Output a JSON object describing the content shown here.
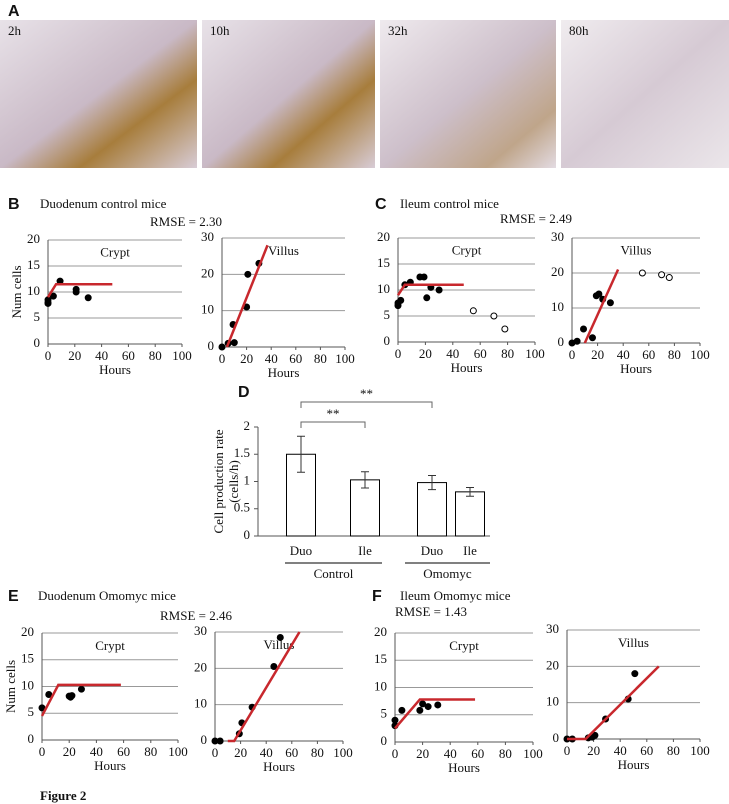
{
  "figure_label": "Figure 2",
  "image_labels": [
    "2h",
    "10h",
    "32h",
    "80h"
  ],
  "panels": [
    {
      "letter": "A"
    },
    {
      "letter": "B",
      "title": "Duodenum control mice",
      "annotation": "RMSE =  2.30"
    },
    {
      "letter": "C",
      "title": "Ileum control mice",
      "annotation": "RMSE = 2.49"
    },
    {
      "letter": "D"
    },
    {
      "letter": "E",
      "title": "Duodenum Omomyc mice",
      "annotation": "RMSE = 2.46"
    },
    {
      "letter": "F",
      "title": "Ileum Omomyc mice",
      "annotation": "RMSE = 1.43"
    }
  ],
  "chart_data": [
    {
      "type": "scatter",
      "label": "Crypt",
      "y_label": "Num cells",
      "x_label": "Hours",
      "xlim": [
        0,
        100
      ],
      "xticks": [
        0,
        20,
        40,
        60,
        80,
        100
      ],
      "ylim": [
        0,
        20
      ],
      "yticks": [
        0,
        5,
        10,
        15,
        20
      ],
      "grid": true,
      "series": [
        {
          "style": "filled",
          "color": "#000000",
          "x": [
            0,
            0,
            0,
            4,
            9,
            21,
            21,
            30
          ],
          "values": [
            8.5,
            7.8,
            8,
            9.2,
            12.1,
            10.5,
            10,
            8.9
          ]
        },
        {
          "style": "line",
          "color": "#c8282d",
          "x": [
            0,
            6,
            48
          ],
          "values": [
            9,
            11.5,
            11.5
          ]
        }
      ]
    },
    {
      "type": "scatter",
      "label": "Villus",
      "x_label": "Hours",
      "xlim": [
        0,
        100
      ],
      "xticks": [
        0,
        20,
        40,
        60,
        80,
        100
      ],
      "ylim": [
        0,
        30
      ],
      "yticks": [
        0,
        10,
        20,
        30
      ],
      "grid": true,
      "series": [
        {
          "style": "filled",
          "color": "#000000",
          "x": [
            0,
            5,
            9,
            10,
            20,
            21,
            30
          ],
          "values": [
            0,
            1,
            6.2,
            1.2,
            11,
            20,
            23
          ]
        },
        {
          "style": "line",
          "color": "#c8282d",
          "x": [
            4,
            37
          ],
          "values": [
            0,
            28
          ]
        }
      ]
    },
    {
      "type": "scatter",
      "label": "Crypt",
      "x_label": "Hours",
      "xlim": [
        0,
        100
      ],
      "xticks": [
        0,
        20,
        40,
        60,
        80,
        100
      ],
      "ylim": [
        0,
        20
      ],
      "yticks": [
        0,
        5,
        10,
        15,
        20
      ],
      "grid": true,
      "series": [
        {
          "style": "filled",
          "color": "#000000",
          "x": [
            0,
            0,
            2,
            5,
            9,
            16,
            19,
            21,
            24,
            30
          ],
          "values": [
            7,
            7.5,
            8,
            11,
            11.5,
            12.5,
            12.5,
            8.5,
            10.5,
            10
          ]
        },
        {
          "style": "open",
          "color": "#000000",
          "x": [
            55,
            70,
            78
          ],
          "values": [
            6,
            5,
            2.5
          ]
        },
        {
          "style": "line",
          "color": "#c8282d",
          "x": [
            0,
            5,
            48
          ],
          "values": [
            9,
            11,
            11
          ]
        }
      ]
    },
    {
      "type": "scatter",
      "label": "Villus",
      "x_label": "Hours",
      "xlim": [
        0,
        100
      ],
      "xticks": [
        0,
        20,
        40,
        60,
        80,
        100
      ],
      "ylim": [
        0,
        30
      ],
      "yticks": [
        0,
        10,
        20,
        30
      ],
      "grid": true,
      "series": [
        {
          "style": "filled",
          "color": "#000000",
          "x": [
            0,
            4,
            9,
            16,
            19,
            21,
            24,
            30
          ],
          "values": [
            0,
            0.5,
            4,
            1.5,
            13.5,
            14,
            12.5,
            11.5
          ]
        },
        {
          "style": "open",
          "color": "#000000",
          "x": [
            55,
            70,
            76
          ],
          "values": [
            20,
            19.5,
            18.7
          ]
        },
        {
          "style": "line",
          "color": "#c8282d",
          "x": [
            10,
            36
          ],
          "values": [
            0,
            21
          ]
        }
      ]
    },
    {
      "type": "bar",
      "y_label": [
        "Cell production rate",
        "(cells/h)"
      ],
      "categories": [
        "Duo",
        "Ile",
        "Duo",
        "Ile"
      ],
      "groups": [
        "Control",
        "Omomyc"
      ],
      "values": [
        1.5,
        1.03,
        0.98,
        0.81
      ],
      "errors": [
        0.33,
        0.15,
        0.13,
        0.08
      ],
      "annotations": [
        "**",
        "**"
      ],
      "ylim": [
        0,
        2
      ],
      "yticks": [
        0,
        0.5,
        1,
        1.5,
        2
      ],
      "grid": false,
      "color": "#ffffff"
    },
    {
      "type": "scatter",
      "label": "Crypt",
      "y_label": "Num cells",
      "x_label": "Hours",
      "xlim": [
        0,
        100
      ],
      "xticks": [
        0,
        20,
        40,
        60,
        80,
        100
      ],
      "ylim": [
        0,
        20
      ],
      "yticks": [
        0,
        5,
        10,
        15,
        20
      ],
      "grid": true,
      "series": [
        {
          "style": "filled",
          "color": "#000000",
          "x": [
            0,
            5,
            20,
            21,
            22,
            29
          ],
          "values": [
            6,
            8.5,
            8.2,
            8,
            8.3,
            9.5
          ]
        },
        {
          "style": "line",
          "color": "#c8282d",
          "x": [
            0,
            12,
            58
          ],
          "values": [
            4.5,
            10.3,
            10.3
          ]
        }
      ]
    },
    {
      "type": "scatter",
      "label": "Villus",
      "x_label": "Hours",
      "xlim": [
        0,
        100
      ],
      "xticks": [
        0,
        20,
        40,
        60,
        80,
        100
      ],
      "ylim": [
        0,
        30
      ],
      "yticks": [
        0,
        10,
        20,
        30
      ],
      "grid": true,
      "series": [
        {
          "style": "filled",
          "color": "#000000",
          "x": [
            0,
            4,
            19,
            21,
            29,
            46,
            51
          ],
          "values": [
            0,
            0,
            2,
            5,
            9.3,
            20.5,
            28.5
          ]
        },
        {
          "style": "line",
          "color": "#c8282d",
          "x": [
            10,
            15,
            66
          ],
          "values": [
            0,
            0,
            30
          ]
        }
      ]
    },
    {
      "type": "scatter",
      "label": "Crypt",
      "x_label": "Hours",
      "xlim": [
        0,
        100
      ],
      "xticks": [
        0,
        20,
        40,
        60,
        80,
        100
      ],
      "ylim": [
        0,
        20
      ],
      "yticks": [
        0,
        5,
        10,
        15,
        20
      ],
      "grid": true,
      "series": [
        {
          "style": "filled",
          "color": "#000000",
          "x": [
            0,
            0,
            5,
            18,
            20,
            24,
            31
          ],
          "values": [
            3,
            4,
            5.8,
            5.8,
            7,
            6.5,
            6.8
          ]
        },
        {
          "style": "line",
          "color": "#c8282d",
          "x": [
            0,
            18,
            58
          ],
          "values": [
            2.5,
            7.8,
            7.8
          ]
        }
      ]
    },
    {
      "type": "scatter",
      "label": "Villus",
      "x_label": "Hours",
      "xlim": [
        0,
        100
      ],
      "xticks": [
        0,
        20,
        40,
        60,
        80,
        100
      ],
      "ylim": [
        0,
        30
      ],
      "yticks": [
        0,
        10,
        20,
        30
      ],
      "grid": true,
      "series": [
        {
          "style": "filled",
          "color": "#000000",
          "x": [
            0,
            4,
            16,
            19,
            21,
            29,
            46,
            51
          ],
          "values": [
            0,
            0,
            0.3,
            0.5,
            1,
            5.5,
            11,
            18
          ]
        },
        {
          "style": "line",
          "color": "#c8282d",
          "x": [
            0,
            14,
            69
          ],
          "values": [
            0,
            0,
            20
          ]
        }
      ]
    }
  ]
}
